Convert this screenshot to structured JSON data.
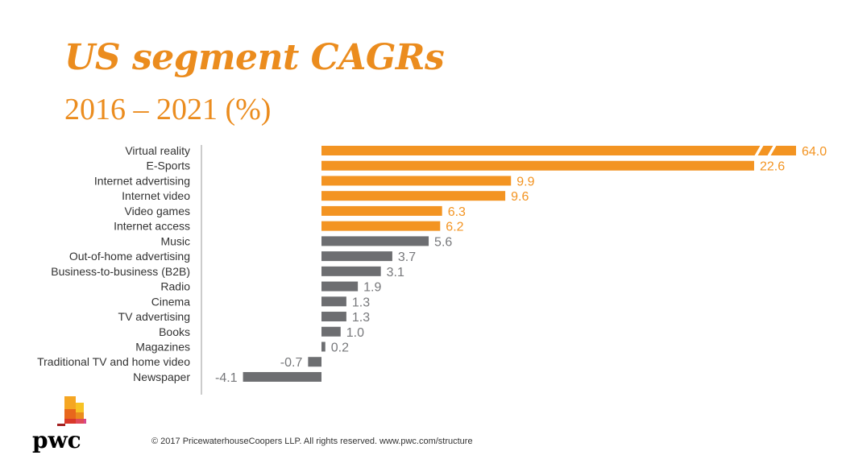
{
  "chart_data": {
    "type": "bar",
    "orientation": "horizontal",
    "title": "US segment CAGRs",
    "subtitle": "2016 – 2021 (%)",
    "categories": [
      "Virtual reality",
      "E-Sports",
      "Internet advertising",
      "Internet video",
      "Video games",
      "Internet access",
      "Music",
      "Out-of-home advertising",
      "Business-to-business (B2B)",
      "Radio",
      "Cinema",
      "TV advertising",
      "Books",
      "Magazines",
      "Traditional TV and home video",
      "Newspaper"
    ],
    "values": [
      64.0,
      22.6,
      9.9,
      9.6,
      6.3,
      6.2,
      5.6,
      3.7,
      3.1,
      1.9,
      1.3,
      1.3,
      1.0,
      0.2,
      -0.7,
      -4.1
    ],
    "highlighted": [
      true,
      true,
      true,
      true,
      true,
      true,
      false,
      false,
      false,
      false,
      false,
      false,
      false,
      false,
      false,
      false
    ],
    "broken_axis_bar": "Virtual reality",
    "colors": {
      "highlight": "#f39422",
      "other": "#6d6e71"
    },
    "grid": false,
    "legend": "none"
  },
  "footer": {
    "copyright": "© 2017 PricewaterhouseCoopers LLP. All rights reserved. www.pwc.com/structure"
  },
  "logo": {
    "text": "pwc"
  }
}
